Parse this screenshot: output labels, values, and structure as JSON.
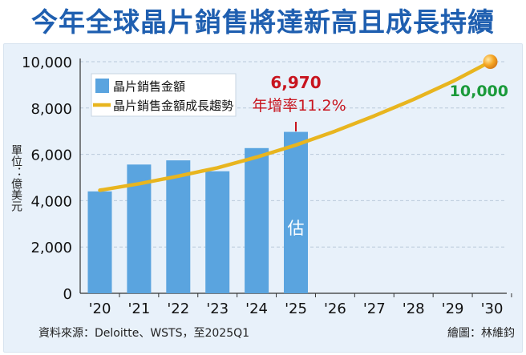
{
  "title": "今年全球晶片銷售將達新高且成長持續",
  "ylabel": "單位：億美元",
  "source": "資料來源：Deloitte、WSTS，至2025Q1",
  "credit": "繪圖：林維鈞",
  "colors": {
    "title": "#1f5fb0",
    "bar": "#5aa4df",
    "trend": "#e8b51f",
    "panel": "#e8f1fa",
    "callout": "#c8141e",
    "green": "#1a9a3a",
    "marker": "#f5a623"
  },
  "chart_data": {
    "type": "bar",
    "categories": [
      "'20",
      "'21",
      "'22",
      "'23",
      "'24",
      "'25",
      "'26",
      "'27",
      "'28",
      "'29",
      "'30"
    ],
    "series": [
      {
        "name": "晶片銷售金額",
        "type": "bar",
        "values": [
          4400,
          5560,
          5740,
          5270,
          6270,
          6970,
          null,
          null,
          null,
          null,
          null
        ]
      },
      {
        "name": "晶片銷售金額成長趨勢",
        "type": "line",
        "values": [
          4450,
          4730,
          5060,
          5420,
          5880,
          6400,
          7000,
          7660,
          8370,
          9150,
          10000
        ]
      }
    ],
    "ylim": [
      0,
      10000
    ],
    "yticks": [
      0,
      2000,
      4000,
      6000,
      8000,
      10000
    ],
    "ytick_labels": [
      "0",
      "2,000",
      "4,000",
      "6,000",
      "8,000",
      "10,000"
    ],
    "legend_position": "top-left",
    "annotations": {
      "estimate": "估",
      "value_2025": "6,970",
      "growth": "年增率11.2%",
      "endpoint": "10,000"
    }
  }
}
